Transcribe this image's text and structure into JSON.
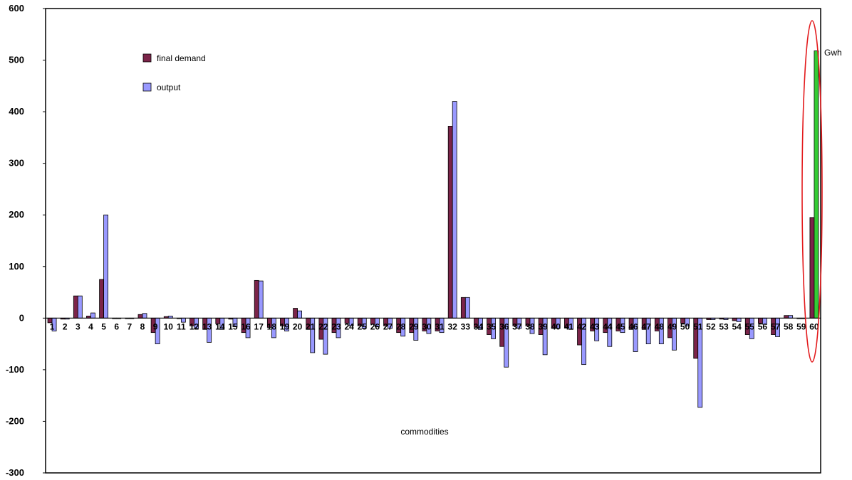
{
  "chart_data": {
    "type": "bar",
    "title": "",
    "xlabel": "commodities",
    "ylabel": "",
    "ylim": [
      -300,
      600
    ],
    "yticks": [
      600,
      500,
      400,
      300,
      200,
      100,
      0,
      -100,
      -200,
      -300
    ],
    "grid": false,
    "legend_position": "top-left",
    "categories": [
      "1",
      "2",
      "3",
      "4",
      "5",
      "6",
      "7",
      "8",
      "9",
      "10",
      "11",
      "12",
      "13",
      "14",
      "15",
      "16",
      "17",
      "18",
      "19",
      "20",
      "21",
      "22",
      "23",
      "24",
      "25",
      "26",
      "27",
      "28",
      "29",
      "30",
      "31",
      "32",
      "33",
      "34",
      "35",
      "36",
      "37",
      "38",
      "39",
      "40",
      "41",
      "42",
      "43",
      "44",
      "45",
      "46",
      "47",
      "48",
      "49",
      "50",
      "51",
      "52",
      "53",
      "54",
      "55",
      "56",
      "57",
      "58",
      "59",
      "60"
    ],
    "series": [
      {
        "name": "final demand",
        "color": "#7b2449",
        "values": [
          -9,
          -2,
          43,
          4,
          75,
          0,
          0,
          7,
          -28,
          3,
          -1,
          -15,
          -22,
          -11,
          -2,
          -28,
          73,
          -18,
          -15,
          19,
          -22,
          -41,
          -28,
          -10,
          -15,
          -12,
          -15,
          -28,
          -28,
          -25,
          -25,
          372,
          40,
          -18,
          -32,
          -55,
          -15,
          -15,
          -32,
          -20,
          -18,
          -52,
          -25,
          -28,
          -25,
          -22,
          -22,
          -25,
          -38,
          -10,
          -78,
          -3,
          -2,
          -5,
          -32,
          -10,
          -32,
          5,
          0,
          195
        ]
      },
      {
        "name": "output",
        "color": "#9999ff",
        "values": [
          -25,
          -2,
          43,
          10,
          200,
          0,
          0,
          9,
          -50,
          4,
          -8,
          -20,
          -47,
          -22,
          -17,
          -38,
          72,
          -38,
          -25,
          14,
          -67,
          -70,
          -38,
          -15,
          -20,
          -17,
          -20,
          -35,
          -43,
          -30,
          -28,
          420,
          40,
          -22,
          -40,
          -95,
          -20,
          -30,
          -71,
          -20,
          -22,
          -90,
          -44,
          -55,
          -28,
          -65,
          -50,
          -50,
          -62,
          -15,
          -173,
          -3,
          -3,
          -7,
          -40,
          -12,
          -36,
          5,
          0,
          518
        ]
      }
    ],
    "highlight": {
      "category": "60",
      "color": "#33cc33",
      "annotation": "Gwh"
    }
  }
}
